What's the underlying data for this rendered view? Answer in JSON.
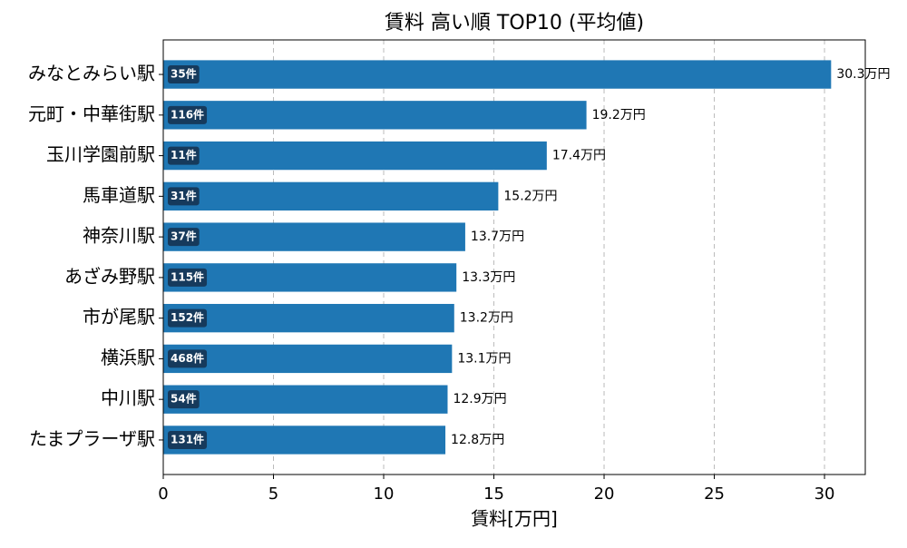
{
  "chart_data": {
    "type": "barh",
    "title": "賃料 高い順 TOP10 (平均値)",
    "x_label": "賃料[万円]",
    "categories": [
      "みなとみらい駅",
      "元町・中華街駅",
      "玉川学園前駅",
      "馬車道駅",
      "神奈川駅",
      "あざみ野駅",
      "市が尾駅",
      "横浜駅",
      "中川駅",
      "たまプラーザ駅"
    ],
    "values": [
      30.3,
      19.2,
      17.4,
      15.2,
      13.7,
      13.3,
      13.2,
      13.1,
      12.9,
      12.8
    ],
    "value_labels": [
      "30.3万円",
      "19.2万円",
      "17.4万円",
      "15.2万円",
      "13.7万円",
      "13.3万円",
      "13.2万円",
      "13.1万円",
      "12.9万円",
      "12.8万円"
    ],
    "badges": [
      "35件",
      "116件",
      "11件",
      "31件",
      "37件",
      "115件",
      "152件",
      "468件",
      "54件",
      "131件"
    ],
    "color": "#1f77b4",
    "badge_color": "#163a5c",
    "xlim": [
      0,
      31.85
    ],
    "xticks": [
      0,
      5,
      10,
      15,
      20,
      25,
      30
    ],
    "grid": true
  }
}
